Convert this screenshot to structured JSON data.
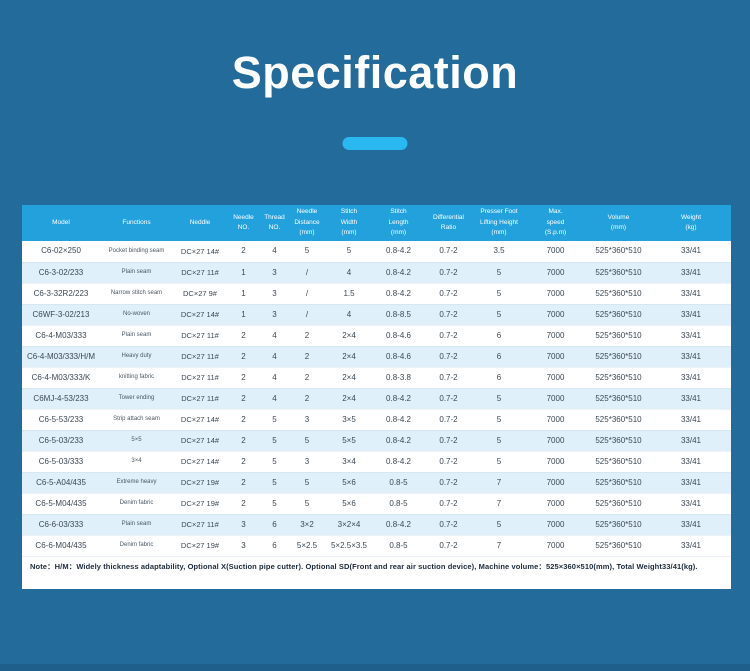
{
  "page": {
    "title": "Specification"
  },
  "colors": {
    "background": "#226B9A",
    "header_bar": "#22A1DC",
    "row": "#FFFFFF",
    "row_alt": "#DFF0FA",
    "accent": "#2AB8F1",
    "title_text": "#FFFFFF",
    "body_text": "#3C4854",
    "note_text": "#1C2A3A",
    "footer_strip": "#1F5F8C"
  },
  "table": {
    "columns": [
      [
        "Model"
      ],
      [
        "Functions"
      ],
      [
        "Neddle"
      ],
      [
        "Needle",
        "NO."
      ],
      [
        "Thread",
        "NO."
      ],
      [
        "Needle",
        "Distance",
        "(mm)"
      ],
      [
        "Stitch",
        "Width",
        "(mm)"
      ],
      [
        "Stitch",
        "Length",
        "(mm)"
      ],
      [
        "Differential",
        "Ratio"
      ],
      [
        "Presser Foot",
        "Lifting Height",
        "(mm)"
      ],
      [
        "Max.",
        "speed",
        "(S.p.m)"
      ],
      [
        "Volume",
        "(mm)"
      ],
      [
        "Weight",
        "(kg)"
      ]
    ],
    "rows": [
      [
        "C6-02×250",
        "Pocket binding seam",
        "DC×27 14#",
        "2",
        "4",
        "5",
        "5",
        "0.8-4.2",
        "0.7-2",
        "3.5",
        "7000",
        "525*360*510",
        "33/41"
      ],
      [
        "C6-3-02/233",
        "Plain seam",
        "DC×27 11#",
        "1",
        "3",
        "/",
        "4",
        "0.8-4.2",
        "0.7-2",
        "5",
        "7000",
        "525*360*510",
        "33/41"
      ],
      [
        "C6-3-32R2/223",
        "Narrow stitch seam",
        "DC×27 9#",
        "1",
        "3",
        "/",
        "1.5",
        "0.8-4.2",
        "0.7-2",
        "5",
        "7000",
        "525*360*510",
        "33/41"
      ],
      [
        "C6WF-3-02/213",
        "No-woven",
        "DC×27 14#",
        "1",
        "3",
        "/",
        "4",
        "0.8-8.5",
        "0.7-2",
        "5",
        "7000",
        "525*360*510",
        "33/41"
      ],
      [
        "C6-4-M03/333",
        "Plain seam",
        "DC×27 11#",
        "2",
        "4",
        "2",
        "2×4",
        "0.8-4.6",
        "0.7-2",
        "6",
        "7000",
        "525*360*510",
        "33/41"
      ],
      [
        "C6-4-M03/333/H/M",
        "Heavy duty",
        "DC×27 11#",
        "2",
        "4",
        "2",
        "2×4",
        "0.8-4.6",
        "0.7-2",
        "6",
        "7000",
        "525*360*510",
        "33/41"
      ],
      [
        "C6-4-M03/333/K",
        "knitting fabric",
        "DC×27 11#",
        "2",
        "4",
        "2",
        "2×4",
        "0.8-3.8",
        "0.7-2",
        "6",
        "7000",
        "525*360*510",
        "33/41"
      ],
      [
        "C6MJ-4-53/233",
        "Tower ending",
        "DC×27 11#",
        "2",
        "4",
        "2",
        "2×4",
        "0.8-4.2",
        "0.7-2",
        "5",
        "7000",
        "525*360*510",
        "33/41"
      ],
      [
        "C6-5-53/233",
        "Strip attach seam",
        "DC×27 14#",
        "2",
        "5",
        "3",
        "3×5",
        "0.8-4.2",
        "0.7-2",
        "5",
        "7000",
        "525*360*510",
        "33/41"
      ],
      [
        "C6-5-03/233",
        "5×5",
        "DC×27 14#",
        "2",
        "5",
        "5",
        "5×5",
        "0.8-4.2",
        "0.7-2",
        "5",
        "7000",
        "525*360*510",
        "33/41"
      ],
      [
        "C6-5-03/333",
        "3×4",
        "DC×27 14#",
        "2",
        "5",
        "3",
        "3×4",
        "0.8-4.2",
        "0.7-2",
        "5",
        "7000",
        "525*360*510",
        "33/41"
      ],
      [
        "C6-5-A04/435",
        "Extreme heavy",
        "DC×27 19#",
        "2",
        "5",
        "5",
        "5×6",
        "0.8-5",
        "0.7-2",
        "7",
        "7000",
        "525*360*510",
        "33/41"
      ],
      [
        "C6-5-M04/435",
        "Denim fabric",
        "DC×27 19#",
        "2",
        "5",
        "5",
        "5×6",
        "0.8-5",
        "0.7-2",
        "7",
        "7000",
        "525*360*510",
        "33/41"
      ],
      [
        "C6-6-03/333",
        "Plain seam",
        "DC×27 11#",
        "3",
        "6",
        "3×2",
        "3×2×4",
        "0.8-4.2",
        "0.7-2",
        "5",
        "7000",
        "525*360*510",
        "33/41"
      ],
      [
        "C6-6-M04/435",
        "Denim fabric",
        "DC×27 19#",
        "3",
        "6",
        "5×2.5",
        "5×2.5×3.5",
        "0.8-5",
        "0.7-2",
        "7",
        "7000",
        "525*360*510",
        "33/41"
      ]
    ]
  },
  "note": "Note：H/M：Widely thickness adaptability, Optional X(Suction pipe cutter). Optional SD(Front and rear air suction device), Machine volume：525×360×510(mm), Total Weight33/41(kg)."
}
